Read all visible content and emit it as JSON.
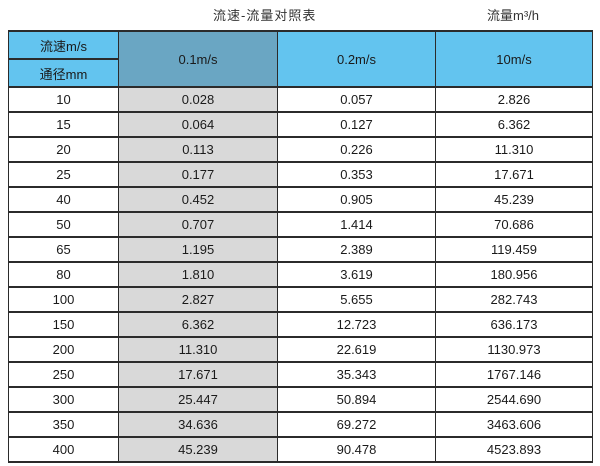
{
  "page": {
    "title": "流速-流量对照表",
    "unit_label": "流量m³/h"
  },
  "table": {
    "header": {
      "velocity_row_label": "流速m/s",
      "diameter_row_label": "通径mm",
      "velocity_columns": [
        "0.1m/s",
        "0.2m/s",
        "10m/s"
      ]
    },
    "rows": [
      {
        "diameter": "10",
        "values": [
          "0.028",
          "0.057",
          "2.826"
        ]
      },
      {
        "diameter": "15",
        "values": [
          "0.064",
          "0.127",
          "6.362"
        ]
      },
      {
        "diameter": "20",
        "values": [
          "0.113",
          "0.226",
          "11.310"
        ]
      },
      {
        "diameter": "25",
        "values": [
          "0.177",
          "0.353",
          "17.671"
        ]
      },
      {
        "diameter": "40",
        "values": [
          "0.452",
          "0.905",
          "45.239"
        ]
      },
      {
        "diameter": "50",
        "values": [
          "0.707",
          "1.414",
          "70.686"
        ]
      },
      {
        "diameter": "65",
        "values": [
          "1.195",
          "2.389",
          "119.459"
        ]
      },
      {
        "diameter": "80",
        "values": [
          "1.810",
          "3.619",
          "180.956"
        ]
      },
      {
        "diameter": "100",
        "values": [
          "2.827",
          "5.655",
          "282.743"
        ]
      },
      {
        "diameter": "150",
        "values": [
          "6.362",
          "12.723",
          "636.173"
        ]
      },
      {
        "diameter": "200",
        "values": [
          "11.310",
          "22.619",
          "1130.973"
        ]
      },
      {
        "diameter": "250",
        "values": [
          "17.671",
          "35.343",
          "1767.146"
        ]
      },
      {
        "diameter": "300",
        "values": [
          "25.447",
          "50.894",
          "2544.690"
        ]
      },
      {
        "diameter": "350",
        "values": [
          "34.636",
          "69.272",
          "3463.606"
        ]
      },
      {
        "diameter": "400",
        "values": [
          "45.239",
          "90.478",
          "4523.893"
        ]
      }
    ]
  },
  "colors": {
    "header_blue": "#63c4ef",
    "header_dark_blue": "#6aa6c3",
    "grey_column": "#d9d9d9",
    "border": "#2b2b2b",
    "text": "#1a1a1a",
    "title_text": "#333333"
  },
  "chart_data": {
    "type": "table",
    "title": "流速-流量对照表",
    "unit": "流量m³/h",
    "columns": [
      "通径mm",
      "0.1m/s",
      "0.2m/s",
      "10m/s"
    ],
    "rows": [
      [
        "10",
        "0.028",
        "0.057",
        "2.826"
      ],
      [
        "15",
        "0.064",
        "0.127",
        "6.362"
      ],
      [
        "20",
        "0.113",
        "0.226",
        "11.310"
      ],
      [
        "25",
        "0.177",
        "0.353",
        "17.671"
      ],
      [
        "40",
        "0.452",
        "0.905",
        "45.239"
      ],
      [
        "50",
        "0.707",
        "1.414",
        "70.686"
      ],
      [
        "65",
        "1.195",
        "2.389",
        "119.459"
      ],
      [
        "80",
        "1.810",
        "3.619",
        "180.956"
      ],
      [
        "100",
        "2.827",
        "5.655",
        "282.743"
      ],
      [
        "150",
        "6.362",
        "12.723",
        "636.173"
      ],
      [
        "200",
        "11.310",
        "22.619",
        "1130.973"
      ],
      [
        "250",
        "17.671",
        "35.343",
        "1767.146"
      ],
      [
        "300",
        "25.447",
        "50.894",
        "2544.690"
      ],
      [
        "350",
        "34.636",
        "69.272",
        "3463.606"
      ],
      [
        "400",
        "45.239",
        "90.478",
        "4523.893"
      ]
    ]
  }
}
